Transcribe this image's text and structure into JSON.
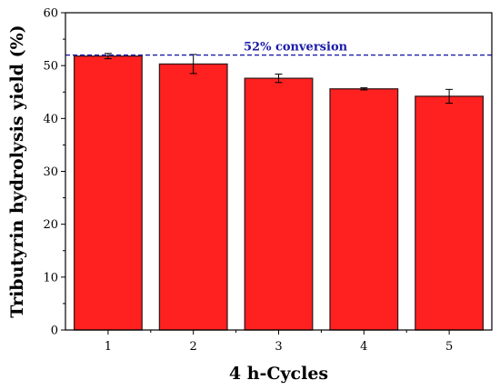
{
  "chart_data": {
    "type": "bar",
    "categories": [
      "1",
      "2",
      "3",
      "4",
      "5"
    ],
    "values": [
      51.8,
      50.3,
      47.6,
      45.6,
      44.2
    ],
    "errors": [
      0.5,
      1.8,
      0.8,
      0.2,
      1.3
    ],
    "xlabel": "4 h-Cycles",
    "ylabel": "Tributyrin hydrolysis yield (%)",
    "ylim": [
      0,
      60
    ],
    "yticks": [
      "0",
      "10",
      "20",
      "30",
      "40",
      "50",
      "60"
    ],
    "grid": false,
    "bar_color": "#ff2020",
    "bar_edge_color": "#3a1a1a",
    "reference_line": {
      "value": 52,
      "label": "52% conversion",
      "color": "#1a1aa8",
      "style": "dashed"
    }
  }
}
